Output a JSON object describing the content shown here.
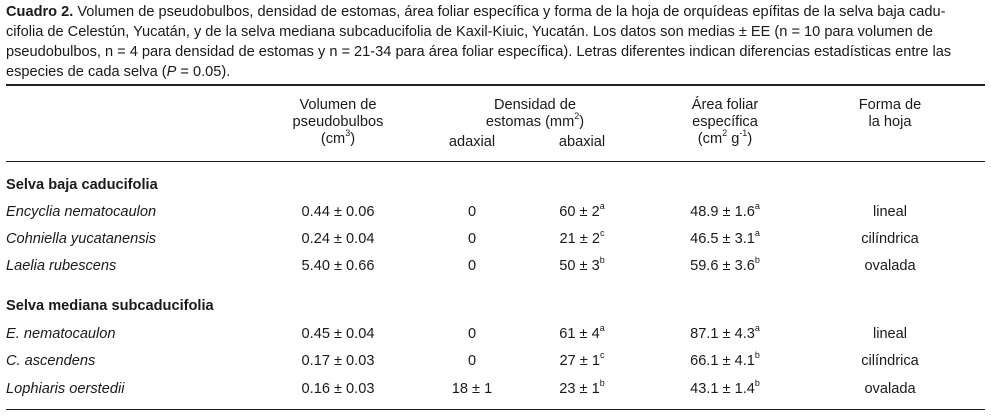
{
  "caption": {
    "label": "Cuadro 2.",
    "line1": "Volumen de pseudobulbos, densidad de estomas, área foliar específica y forma de la hoja de orquídeas epífitas de la selva baja cadu-",
    "line2": "cifolia de Celestún, Yucatán, y de la selva mediana subcaducifolia de Kaxil-Kiuic, Yucatán. Los datos son medias ± EE (n = 10 para volumen de",
    "line3": "pseudobulbos, n = 4 para densidad de estomas y n = 21-34 para área foliar específica). Letras diferentes indican diferencias estadísticas entre las",
    "line4_pre": "especies de cada selva (",
    "line4_p": "P",
    "line4_post": " = 0.05)."
  },
  "header": {
    "vol_l1": "Volumen de",
    "vol_l2": "pseudobulbos",
    "vol_l3a": "(cm",
    "vol_l3sup": "3",
    "vol_l3b": ")",
    "dens_l1": "Densidad de",
    "dens_l2a": "estomas (mm",
    "dens_l2sup": "2",
    "dens_l2b": ")",
    "adaxial": "adaxial",
    "abaxial": "abaxial",
    "area_l1": "Área foliar",
    "area_l2": "específica",
    "area_l3a": "(cm",
    "area_l3sup1": "2",
    "area_l3b": " g",
    "area_l3sup2": "-1",
    "area_l3c": ")",
    "forma_l1": "Forma de",
    "forma_l2": "la hoja"
  },
  "sections": [
    {
      "title": "Selva baja caducifolia",
      "rows": [
        {
          "species": "Encyclia nematocaulon",
          "vol": "0.44 ± 0.06",
          "adaxial": "0",
          "abaxial": "60 ± 2",
          "abaxial_sup": "a",
          "area": "48.9 ± 1.6",
          "area_sup": "a",
          "forma": "lineal"
        },
        {
          "species": "Cohniella yucatanensis",
          "vol": "0.24 ± 0.04",
          "adaxial": "0",
          "abaxial": "21 ± 2",
          "abaxial_sup": "c",
          "area": "46.5 ± 3.1",
          "area_sup": "a",
          "forma": "cilíndrica"
        },
        {
          "species": "Laelia rubescens",
          "vol": "5.40 ± 0.66",
          "adaxial": "0",
          "abaxial": "50 ± 3",
          "abaxial_sup": "b",
          "area": "59.6 ± 3.6",
          "area_sup": "b",
          "forma": "ovalada"
        }
      ]
    },
    {
      "title": "Selva mediana subcaducifolia",
      "rows": [
        {
          "species": "E. nematocaulon",
          "vol": "0.45 ± 0.04",
          "adaxial": "0",
          "abaxial": "61 ± 4",
          "abaxial_sup": "a",
          "area": "87.1 ± 4.3",
          "area_sup": "a",
          "forma": "lineal"
        },
        {
          "species": "C. ascendens",
          "vol": "0.17 ± 0.03",
          "adaxial": "0",
          "abaxial": "27 ± 1",
          "abaxial_sup": "c",
          "area": "66.1 ± 4.1",
          "area_sup": "b",
          "forma": "cilíndrica"
        },
        {
          "species": "Lophiaris oerstedii",
          "vol": "0.16 ± 0.03",
          "adaxial": "18 ± 1",
          "abaxial": "23 ± 1",
          "abaxial_sup": "b",
          "area": "43.1 ± 1.4",
          "area_sup": "b",
          "forma": "ovalada"
        }
      ]
    }
  ]
}
